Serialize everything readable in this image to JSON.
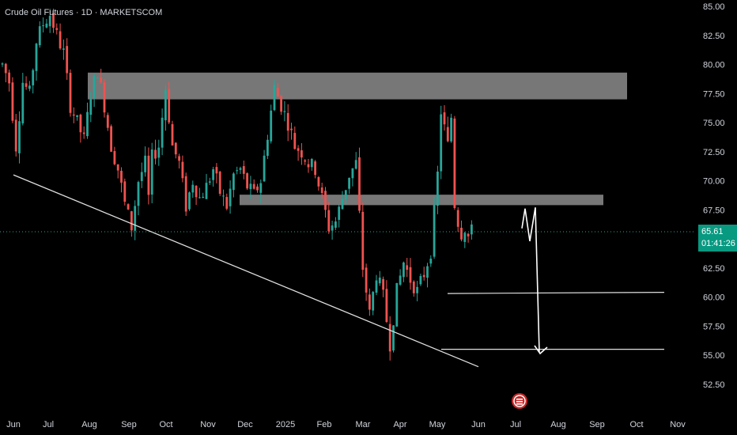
{
  "header": {
    "title": "Crude Oil Futures · 1D · MARKETSCOM"
  },
  "price_badge": {
    "price": "65.61",
    "countdown": "01:41:26"
  },
  "colors": {
    "up": "#26a69a",
    "down": "#ef5350",
    "zone": "#8c8c8c",
    "line": "#e0e0e0",
    "badge": "#089981"
  },
  "chart_data": {
    "type": "candlestick",
    "title": "Crude Oil Futures · 1D · MARKETSCOM",
    "y_ticks": [
      "85.00",
      "82.50",
      "80.00",
      "77.50",
      "75.00",
      "72.50",
      "70.00",
      "67.50",
      "65.00",
      "62.50",
      "60.00",
      "57.50",
      "55.00",
      "52.50"
    ],
    "ylim": [
      51.3,
      85.3
    ],
    "x_ticks": [
      "Jun",
      "Jul",
      "Aug",
      "Sep",
      "Oct",
      "Nov",
      "Dec",
      "2025",
      "Feb",
      "Mar",
      "Apr",
      "May",
      "Jun",
      "Jul",
      "Aug",
      "Sep",
      "Oct",
      "Nov"
    ],
    "price_path": [
      [
        0,
        80.0
      ],
      [
        2,
        78.5
      ],
      [
        4,
        73.0
      ],
      [
        6,
        78.5
      ],
      [
        8,
        77.5
      ],
      [
        10,
        82.0
      ],
      [
        12,
        83.5
      ],
      [
        14,
        84.3
      ],
      [
        16,
        82.5
      ],
      [
        18,
        81.0
      ],
      [
        20,
        76.5
      ],
      [
        22,
        75.0
      ],
      [
        24,
        73.5
      ],
      [
        26,
        77.5
      ],
      [
        28,
        79.5
      ],
      [
        30,
        76.5
      ],
      [
        32,
        73.0
      ],
      [
        34,
        71.0
      ],
      [
        36,
        68.0
      ],
      [
        38,
        66.0
      ],
      [
        40,
        70.0
      ],
      [
        42,
        71.5
      ],
      [
        43,
        68.5
      ],
      [
        44,
        72.0
      ],
      [
        46,
        73.0
      ],
      [
        48,
        78.0
      ],
      [
        50,
        73.0
      ],
      [
        52,
        71.5
      ],
      [
        54,
        67.8
      ],
      [
        56,
        70.0
      ],
      [
        58,
        68.5
      ],
      [
        60,
        69.5
      ],
      [
        62,
        71.0
      ],
      [
        64,
        69.0
      ],
      [
        66,
        67.8
      ],
      [
        68,
        70.5
      ],
      [
        70,
        71.0
      ],
      [
        72,
        69.5
      ],
      [
        74,
        68.8
      ],
      [
        76,
        70.0
      ],
      [
        78,
        74.0
      ],
      [
        80,
        78.0
      ],
      [
        82,
        76.5
      ],
      [
        84,
        75.0
      ],
      [
        86,
        73.0
      ],
      [
        88,
        72.5
      ],
      [
        90,
        71.5
      ],
      [
        92,
        71.0
      ],
      [
        94,
        68.5
      ],
      [
        96,
        66.0
      ],
      [
        98,
        66.5
      ],
      [
        100,
        68.5
      ],
      [
        102,
        70.5
      ],
      [
        104,
        71.5
      ],
      [
        106,
        62.5
      ],
      [
        108,
        58.5
      ],
      [
        110,
        62.0
      ],
      [
        112,
        60.0
      ],
      [
        114,
        56.0
      ],
      [
        116,
        60.5
      ],
      [
        118,
        63.0
      ],
      [
        120,
        61.5
      ],
      [
        122,
        60.5
      ],
      [
        124,
        62.0
      ],
      [
        126,
        64.0
      ],
      [
        128,
        70.5
      ],
      [
        129,
        76.0
      ],
      [
        131,
        73.0
      ],
      [
        132,
        75.5
      ],
      [
        133,
        68.0
      ],
      [
        134,
        66.5
      ],
      [
        135,
        65.5
      ],
      [
        136,
        66.0
      ],
      [
        137,
        65.2
      ],
      [
        138,
        65.6
      ]
    ],
    "resistance_zones": [
      {
        "from": 77.0,
        "to": 79.3
      },
      {
        "from": 67.9,
        "to": 68.8
      }
    ],
    "trendline": {
      "from": {
        "date": "Jun 2024",
        "price": 70.5
      },
      "to": {
        "date": "May 2025",
        "price": 54.0
      }
    },
    "horizontal_levels": [
      60.3,
      55.5
    ],
    "projection": [
      67.7,
      65.0,
      55.0
    ],
    "current_price": 65.61,
    "countdown": "01:41:26",
    "grid": false,
    "legend": "none"
  }
}
